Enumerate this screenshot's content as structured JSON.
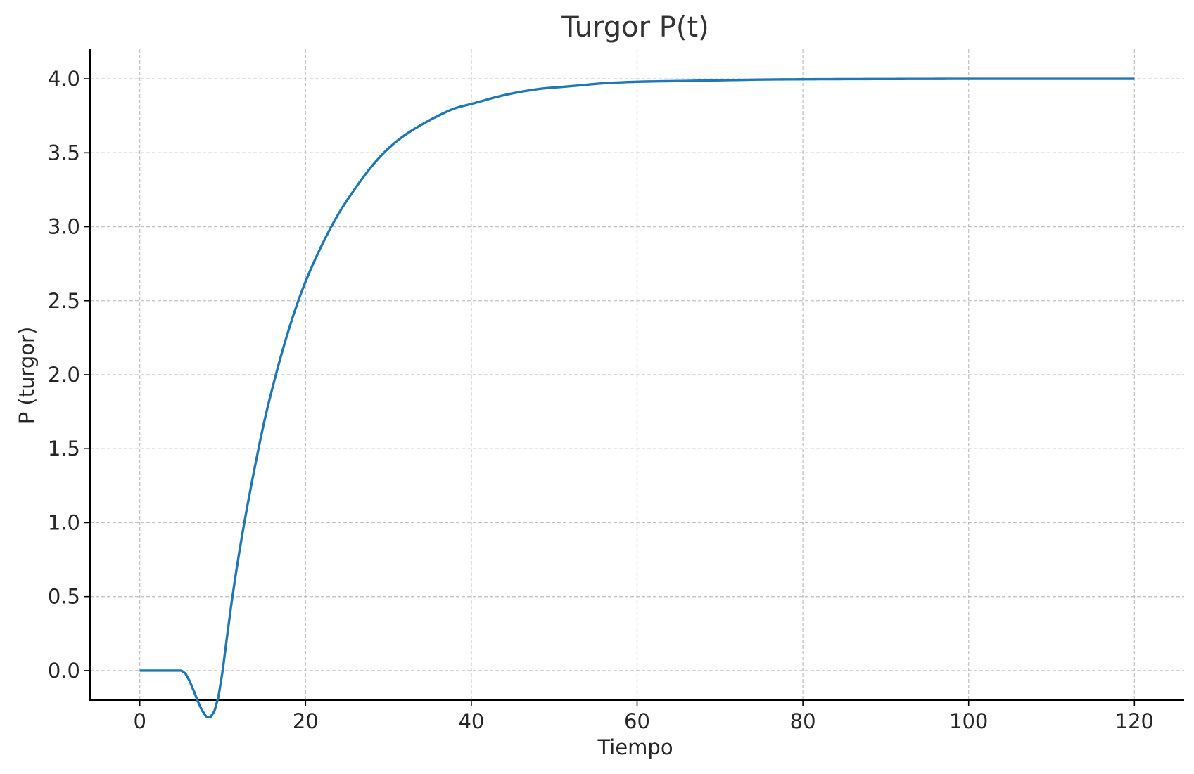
{
  "chart_data": {
    "type": "line",
    "title": "Turgor P(t)",
    "xlabel": "Tiempo",
    "ylabel": "P (turgor)",
    "xlim": [
      -6,
      126
    ],
    "ylim": [
      -0.2,
      4.2
    ],
    "xticks": [
      0,
      20,
      40,
      60,
      80,
      100,
      120
    ],
    "xtick_labels": [
      "0",
      "20",
      "40",
      "60",
      "80",
      "100",
      "120"
    ],
    "yticks": [
      0.0,
      0.5,
      1.0,
      1.5,
      2.0,
      2.5,
      3.0,
      3.5,
      4.0
    ],
    "ytick_labels": [
      "0.0",
      "0.5",
      "1.0",
      "1.5",
      "2.0",
      "2.5",
      "3.0",
      "3.5",
      "4.0"
    ],
    "grid": true,
    "series": [
      {
        "color": "#1f77b4",
        "x": [
          0,
          5,
          10,
          11,
          12,
          13,
          14,
          15,
          16,
          17,
          18,
          19,
          20,
          22,
          24,
          26,
          28,
          30,
          32,
          34,
          36,
          38,
          40,
          44,
          48,
          52,
          56,
          60,
          65,
          70,
          75,
          80,
          90,
          100,
          110,
          120
        ],
        "y": [
          0,
          0,
          0,
          0.43,
          0.8,
          1.12,
          1.41,
          1.68,
          1.91,
          2.12,
          2.31,
          2.48,
          2.63,
          2.88,
          3.09,
          3.26,
          3.41,
          3.53,
          3.62,
          3.69,
          3.75,
          3.8,
          3.83,
          3.89,
          3.93,
          3.95,
          3.97,
          3.98,
          3.985,
          3.99,
          3.995,
          3.997,
          3.999,
          4.0,
          4.0,
          4.0
        ]
      }
    ]
  }
}
